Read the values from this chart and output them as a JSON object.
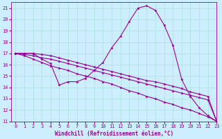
{
  "xlabel": "Windchill (Refroidissement éolien,°C)",
  "background_color": "#cceeff",
  "line_color": "#990099",
  "grid_color": "#aadddd",
  "xlim": [
    -0.5,
    23
  ],
  "ylim": [
    11,
    21.5
  ],
  "xticks": [
    0,
    1,
    2,
    3,
    4,
    5,
    6,
    7,
    8,
    9,
    10,
    11,
    12,
    13,
    14,
    15,
    16,
    17,
    18,
    19,
    20,
    21,
    22,
    23
  ],
  "yticks": [
    11,
    12,
    13,
    14,
    15,
    16,
    17,
    18,
    19,
    20,
    21
  ],
  "series": [
    [
      17.0,
      17.0,
      17.0,
      16.5,
      16.1,
      14.2,
      14.5,
      14.5,
      14.8,
      15.5,
      16.2,
      17.5,
      18.5,
      19.8,
      21.0,
      21.2,
      20.8,
      19.5,
      17.7,
      14.7,
      13.2,
      12.2,
      11.5,
      11.0
    ],
    [
      17.0,
      16.8,
      16.5,
      16.2,
      15.9,
      15.7,
      15.5,
      15.2,
      15.0,
      14.8,
      14.5,
      14.3,
      14.0,
      13.7,
      13.5,
      13.2,
      13.0,
      12.7,
      12.5,
      12.2,
      12.0,
      11.7,
      11.4,
      11.0
    ],
    [
      17.0,
      16.9,
      16.8,
      16.6,
      16.5,
      16.3,
      16.1,
      15.9,
      15.7,
      15.5,
      15.3,
      15.1,
      14.9,
      14.7,
      14.5,
      14.3,
      14.1,
      13.9,
      13.7,
      13.5,
      13.3,
      13.1,
      12.9,
      11.0
    ],
    [
      17.0,
      17.0,
      17.0,
      16.9,
      16.8,
      16.6,
      16.4,
      16.2,
      16.0,
      15.8,
      15.6,
      15.4,
      15.2,
      15.0,
      14.8,
      14.6,
      14.5,
      14.3,
      14.1,
      13.9,
      13.6,
      13.4,
      13.2,
      11.0
    ]
  ],
  "tick_fontsize": 5.0,
  "xlabel_fontsize": 5.5,
  "marker_size": 2.5,
  "linewidth": 0.8
}
